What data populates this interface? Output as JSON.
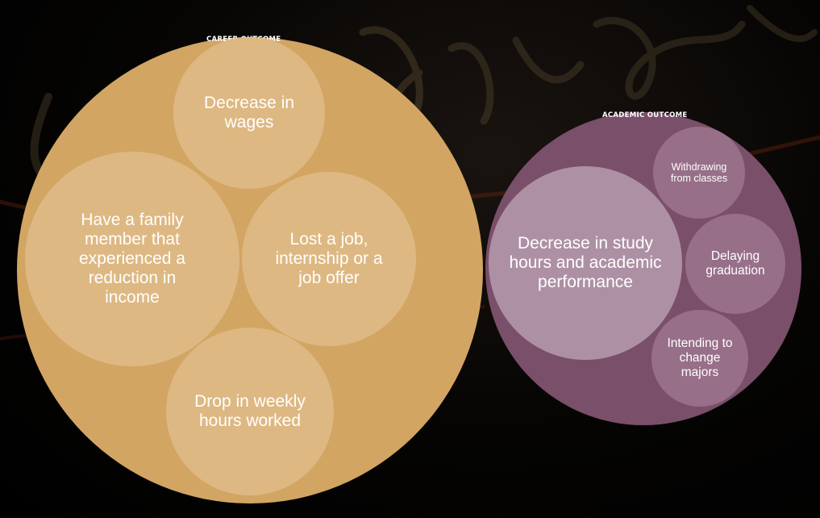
{
  "colors": {
    "background": "#000000",
    "career_group": "#D2A563",
    "career_bubble": "#DEB882",
    "academic_group": "#7A4F69",
    "academic_bubble_main": "#AE90A4",
    "academic_bubble_small": "#976F88",
    "text": "#FFFFFF"
  },
  "groups": [
    {
      "label": "CAREER OUTCOME",
      "items": [
        "Decrease in wages",
        "Have a family member that experienced a reduction in income",
        "Lost a job, internship or a job offer",
        "Drop in weekly hours worked"
      ]
    },
    {
      "label": "ACADEMIC OUTCOME",
      "items": [
        "Decrease in study hours and academic performance",
        "Withdrawing from classes",
        "Delaying graduation",
        "Intending to change majors"
      ]
    }
  ]
}
